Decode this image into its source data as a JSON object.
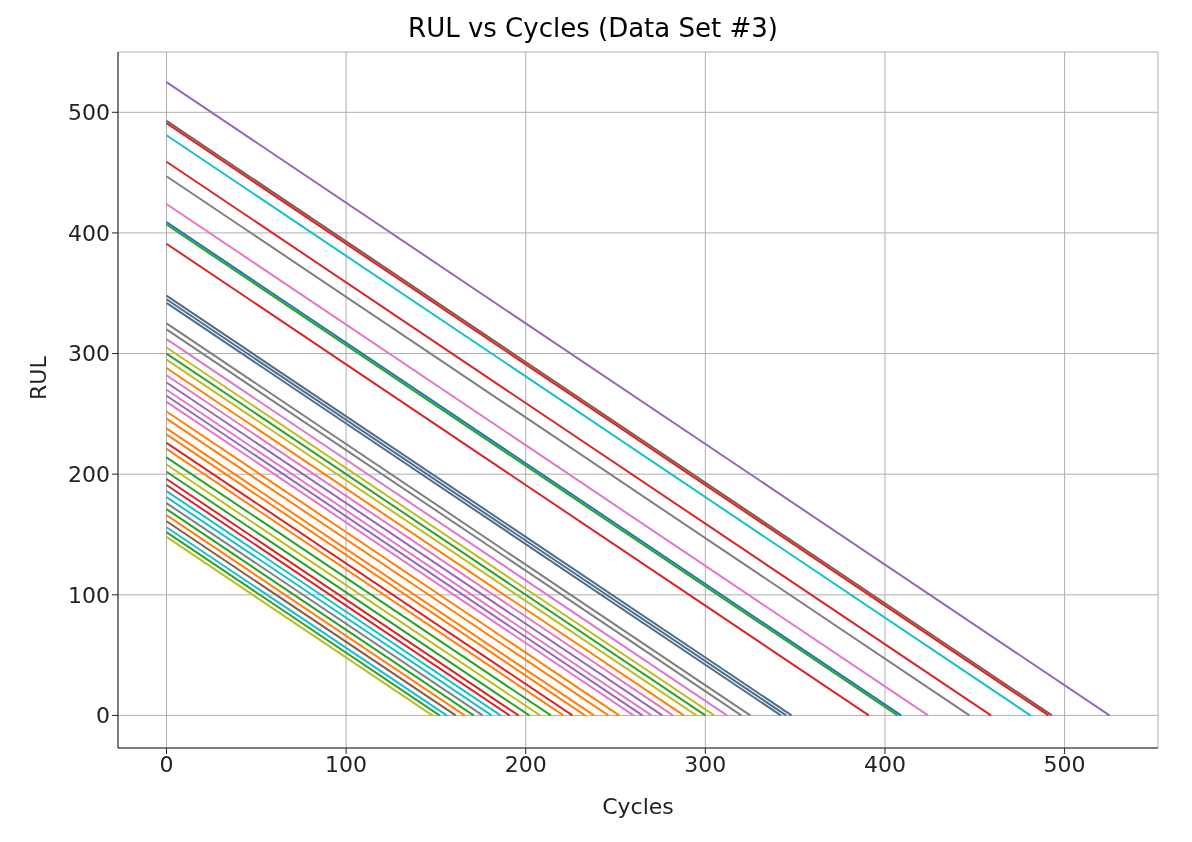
{
  "chart_data": {
    "type": "line",
    "title": "RUL vs Cycles (Data Set #3)",
    "xlabel": "Cycles",
    "ylabel": "RUL",
    "xlim": [
      -27,
      552
    ],
    "ylim": [
      -27,
      550
    ],
    "xticks": [
      0,
      100,
      200,
      300,
      400,
      500
    ],
    "yticks": [
      0,
      100,
      200,
      300,
      400,
      500
    ],
    "grid": true,
    "marker": "none",
    "line_style": "solid",
    "series": [
      {
        "color": "#9467bd",
        "x": [
          0,
          525
        ],
        "values": [
          525,
          0
        ]
      },
      {
        "color": "#8c564b",
        "x": [
          0,
          493
        ],
        "values": [
          493,
          0
        ]
      },
      {
        "color": "#d62728",
        "x": [
          0,
          491
        ],
        "values": [
          491,
          0
        ]
      },
      {
        "color": "#17becf",
        "x": [
          0,
          481
        ],
        "values": [
          481,
          0
        ]
      },
      {
        "color": "#d62728",
        "x": [
          0,
          459
        ],
        "values": [
          459,
          0
        ]
      },
      {
        "color": "#7f7f7f",
        "x": [
          0,
          447
        ],
        "values": [
          447,
          0
        ]
      },
      {
        "color": "#e377c2",
        "x": [
          0,
          424
        ],
        "values": [
          424,
          0
        ]
      },
      {
        "color": "#1f77b4",
        "x": [
          0,
          409
        ],
        "values": [
          409,
          0
        ]
      },
      {
        "color": "#2ca02c",
        "x": [
          0,
          407
        ],
        "values": [
          407,
          0
        ]
      },
      {
        "color": "#d62728",
        "x": [
          0,
          391
        ],
        "values": [
          391,
          0
        ]
      },
      {
        "color": "#4f6d8a",
        "x": [
          0,
          348
        ],
        "values": [
          348,
          0
        ]
      },
      {
        "color": "#4f6d8a",
        "x": [
          0,
          345
        ],
        "values": [
          345,
          0
        ]
      },
      {
        "color": "#4f6d8a",
        "x": [
          0,
          342
        ],
        "values": [
          342,
          0
        ]
      },
      {
        "color": "#7f7f7f",
        "x": [
          0,
          325
        ],
        "values": [
          325,
          0
        ]
      },
      {
        "color": "#7f7f7f",
        "x": [
          0,
          320
        ],
        "values": [
          320,
          0
        ]
      },
      {
        "color": "#e377c2",
        "x": [
          0,
          312
        ],
        "values": [
          312,
          0
        ]
      },
      {
        "color": "#bcbd22",
        "x": [
          0,
          305
        ],
        "values": [
          305,
          0
        ]
      },
      {
        "color": "#2ca02c",
        "x": [
          0,
          300
        ],
        "values": [
          300,
          0
        ]
      },
      {
        "color": "#bcbd22",
        "x": [
          0,
          295
        ],
        "values": [
          295,
          0
        ]
      },
      {
        "color": "#ff7f0e",
        "x": [
          0,
          288
        ],
        "values": [
          288,
          0
        ]
      },
      {
        "color": "#e377c2",
        "x": [
          0,
          282
        ],
        "values": [
          282,
          0
        ]
      },
      {
        "color": "#9467bd",
        "x": [
          0,
          276
        ],
        "values": [
          276,
          0
        ]
      },
      {
        "color": "#e377c2",
        "x": [
          0,
          270
        ],
        "values": [
          270,
          0
        ]
      },
      {
        "color": "#9467bd",
        "x": [
          0,
          265
        ],
        "values": [
          265,
          0
        ]
      },
      {
        "color": "#e377c2",
        "x": [
          0,
          260
        ],
        "values": [
          260,
          0
        ]
      },
      {
        "color": "#ff7f0e",
        "x": [
          0,
          252
        ],
        "values": [
          252,
          0
        ]
      },
      {
        "color": "#ff7f0e",
        "x": [
          0,
          246
        ],
        "values": [
          246,
          0
        ]
      },
      {
        "color": "#ff7f0e",
        "x": [
          0,
          238
        ],
        "values": [
          238,
          0
        ]
      },
      {
        "color": "#ff7f0e",
        "x": [
          0,
          233
        ],
        "values": [
          233,
          0
        ]
      },
      {
        "color": "#d62728",
        "x": [
          0,
          226
        ],
        "values": [
          226,
          0
        ]
      },
      {
        "color": "#ff7f0e",
        "x": [
          0,
          221
        ],
        "values": [
          221,
          0
        ]
      },
      {
        "color": "#2ca02c",
        "x": [
          0,
          214
        ],
        "values": [
          214,
          0
        ]
      },
      {
        "color": "#bcbd22",
        "x": [
          0,
          208
        ],
        "values": [
          208,
          0
        ]
      },
      {
        "color": "#2ca02c",
        "x": [
          0,
          202
        ],
        "values": [
          202,
          0
        ]
      },
      {
        "color": "#d62728",
        "x": [
          0,
          196
        ],
        "values": [
          196,
          0
        ]
      },
      {
        "color": "#d62728",
        "x": [
          0,
          191
        ],
        "values": [
          191,
          0
        ]
      },
      {
        "color": "#17becf",
        "x": [
          0,
          186
        ],
        "values": [
          186,
          0
        ]
      },
      {
        "color": "#17becf",
        "x": [
          0,
          181
        ],
        "values": [
          181,
          0
        ]
      },
      {
        "color": "#7f7f7f",
        "x": [
          0,
          176
        ],
        "values": [
          176,
          0
        ]
      },
      {
        "color": "#2ca02c",
        "x": [
          0,
          171
        ],
        "values": [
          171,
          0
        ]
      },
      {
        "color": "#ff7f0e",
        "x": [
          0,
          166
        ],
        "values": [
          166,
          0
        ]
      },
      {
        "color": "#8c564b",
        "x": [
          0,
          161
        ],
        "values": [
          161,
          0
        ]
      },
      {
        "color": "#17becf",
        "x": [
          0,
          156
        ],
        "values": [
          156,
          0
        ]
      },
      {
        "color": "#2ca02c",
        "x": [
          0,
          152
        ],
        "values": [
          152,
          0
        ]
      },
      {
        "color": "#bcbd22",
        "x": [
          0,
          148
        ],
        "values": [
          148,
          0
        ]
      }
    ]
  }
}
